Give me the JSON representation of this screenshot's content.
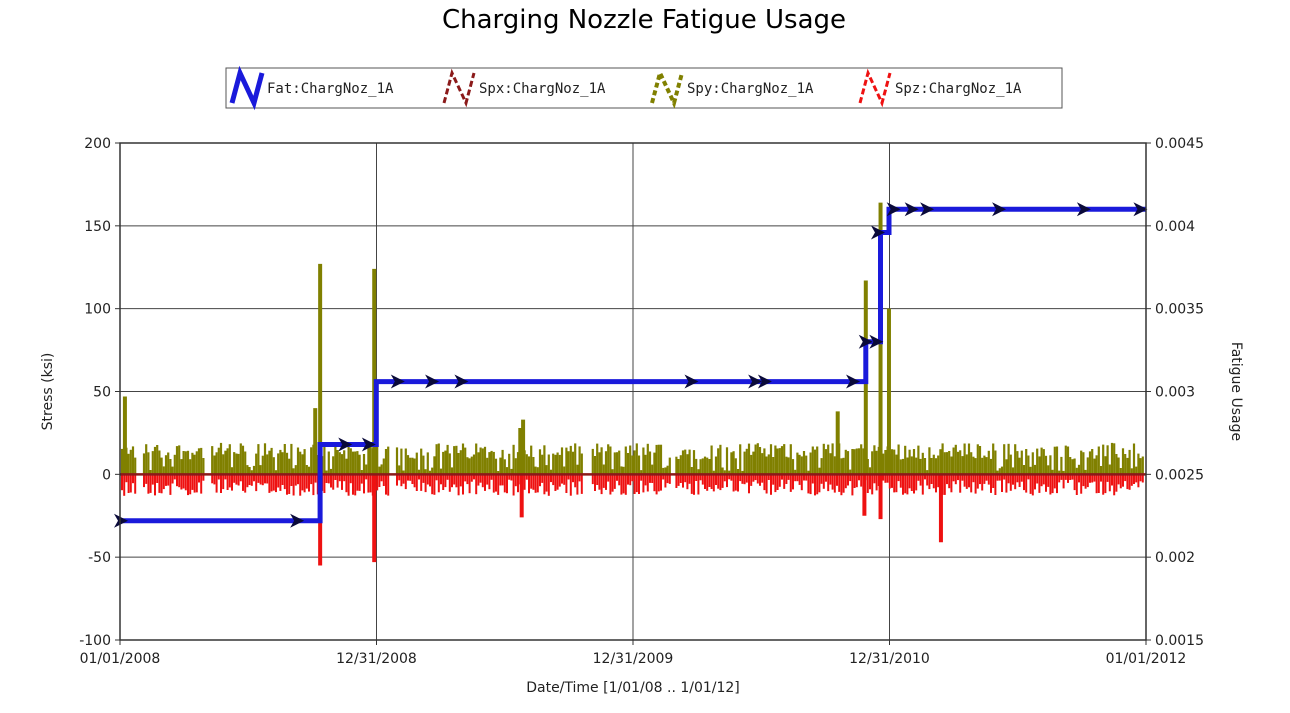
{
  "chart_data": {
    "type": "line",
    "title": "Charging Nozzle Fatigue Usage",
    "xlabel": "Date/Time [1/01/08 .. 1/01/12]",
    "ylabel_left": "Stress (ksi)",
    "ylabel_right": "Fatigue Usage",
    "xlim": [
      "2008-01-01",
      "2012-01-01"
    ],
    "ylim_left": [
      -100,
      200
    ],
    "ylim_right": [
      0.0015,
      0.0045
    ],
    "x_ticks": [
      "01/01/2008",
      "12/31/2008",
      "12/31/2009",
      "12/31/2010",
      "01/01/2012"
    ],
    "y_ticks_left": [
      "200",
      "150",
      "100",
      "50",
      "0",
      "-50",
      "-100"
    ],
    "y_ticks_right": [
      "0.0045",
      "0.004",
      "0.0035",
      "0.003",
      "0.0025",
      "0.002",
      "0.0015"
    ],
    "grid": true,
    "legend_position": "top",
    "series": [
      {
        "name": "Fat:ChargNoz_1A",
        "color": "#1a1adb",
        "axis": "right",
        "x": [
          "2008-01-01",
          "2008-10-12",
          "2008-10-12",
          "2008-12-31",
          "2008-12-31",
          "2010-11-28",
          "2010-11-28",
          "2010-12-19",
          "2010-12-19",
          "2010-12-31",
          "2010-12-31",
          "2012-01-01"
        ],
        "values": [
          0.00222,
          0.00222,
          0.00268,
          0.00268,
          0.00306,
          0.00306,
          0.0033,
          0.0033,
          0.00396,
          0.00396,
          0.0041,
          0.0041
        ]
      },
      {
        "name": "Spx:ChargNoz_1A",
        "color": "#8b1a1a",
        "axis": "left"
      },
      {
        "name": "Spy:ChargNoz_1A",
        "color": "#808000",
        "axis": "left",
        "spikes_x": [
          "2008-01-08",
          "2008-10-05",
          "2008-10-12",
          "2008-12-28",
          "2009-07-24",
          "2009-07-28",
          "2010-10-19",
          "2010-11-28",
          "2010-12-19",
          "2010-12-31"
        ],
        "spikes_y": [
          47,
          40,
          127,
          124,
          28,
          33,
          38,
          117,
          164,
          100
        ]
      },
      {
        "name": "Spz:ChargNoz_1A",
        "color": "#ee1111",
        "axis": "left",
        "spikes_x": [
          "2008-10-12",
          "2008-12-28",
          "2009-07-26",
          "2010-11-26",
          "2010-12-19",
          "2011-03-15"
        ],
        "spikes_y": [
          -55,
          -53,
          -26,
          -25,
          -27,
          -41
        ]
      }
    ]
  }
}
